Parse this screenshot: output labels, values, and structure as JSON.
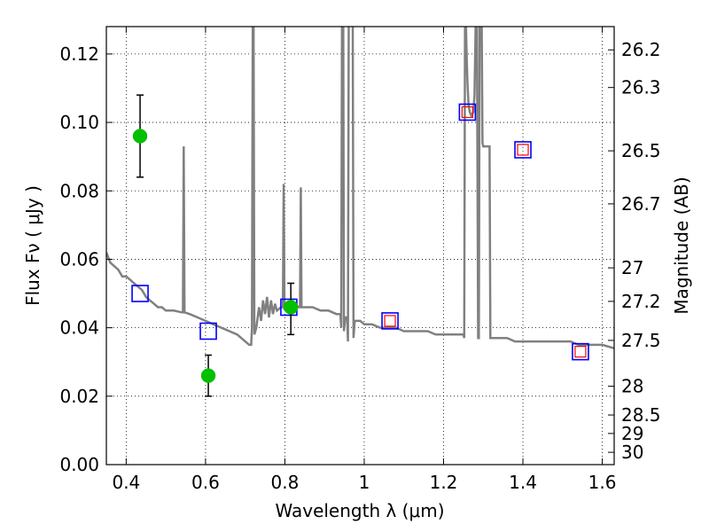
{
  "chart_data": {
    "type": "scatter",
    "xlabel": "Wavelength  λ (μm)",
    "ylabel": "Flux  Fν  ( μJy )",
    "ylabel_right": "Magnitude (AB)",
    "xlim": [
      0.35,
      1.63
    ],
    "ylim": [
      0.0,
      0.128
    ],
    "grid": true,
    "x_ticks": [
      {
        "value": 0.4,
        "label": "0.4"
      },
      {
        "value": 0.6,
        "label": "0.6"
      },
      {
        "value": 0.8,
        "label": "0.8"
      },
      {
        "value": 1.0,
        "label": "1"
      },
      {
        "value": 1.2,
        "label": "1.2"
      },
      {
        "value": 1.4,
        "label": "1.4"
      },
      {
        "value": 1.6,
        "label": "1.6"
      }
    ],
    "y_ticks": [
      {
        "value": 0.0,
        "label": "0.00"
      },
      {
        "value": 0.02,
        "label": "0.02"
      },
      {
        "value": 0.04,
        "label": "0.04"
      },
      {
        "value": 0.06,
        "label": "0.06"
      },
      {
        "value": 0.08,
        "label": "0.08"
      },
      {
        "value": 0.1,
        "label": "0.10"
      },
      {
        "value": 0.12,
        "label": "0.12"
      }
    ],
    "right_ticks": [
      {
        "flux": 0.1212,
        "label": "26.2"
      },
      {
        "flux": 0.1102,
        "label": "26.3"
      },
      {
        "flux": 0.0917,
        "label": "26.5"
      },
      {
        "flux": 0.0762,
        "label": "26.7"
      },
      {
        "flux": 0.0575,
        "label": "27"
      },
      {
        "flux": 0.0477,
        "label": "27.2"
      },
      {
        "flux": 0.0363,
        "label": "27.5"
      },
      {
        "flux": 0.0229,
        "label": "28"
      },
      {
        "flux": 0.0145,
        "label": "28.5"
      },
      {
        "flux": 0.0091,
        "label": "29"
      },
      {
        "flux": 0.0036,
        "label": "30"
      }
    ],
    "series": [
      {
        "kind": "line",
        "color": "#808080",
        "points": [
          [
            0.35,
            0.062
          ],
          [
            0.36,
            0.059
          ],
          [
            0.37,
            0.058
          ],
          [
            0.38,
            0.057
          ],
          [
            0.39,
            0.055
          ],
          [
            0.4,
            0.055
          ],
          [
            0.41,
            0.054
          ],
          [
            0.42,
            0.053
          ],
          [
            0.43,
            0.052
          ],
          [
            0.44,
            0.051
          ],
          [
            0.45,
            0.049
          ],
          [
            0.46,
            0.048
          ],
          [
            0.47,
            0.047
          ],
          [
            0.48,
            0.046
          ],
          [
            0.49,
            0.046
          ],
          [
            0.5,
            0.045
          ],
          [
            0.52,
            0.045
          ],
          [
            0.54,
            0.0445
          ],
          [
            0.543,
            0.0445
          ],
          [
            0.545,
            0.093
          ],
          [
            0.547,
            0.0445
          ],
          [
            0.56,
            0.044
          ],
          [
            0.58,
            0.043
          ],
          [
            0.6,
            0.042
          ],
          [
            0.62,
            0.041
          ],
          [
            0.64,
            0.04
          ],
          [
            0.66,
            0.039
          ],
          [
            0.68,
            0.038
          ],
          [
            0.7,
            0.036
          ],
          [
            0.71,
            0.035
          ],
          [
            0.715,
            0.035
          ],
          [
            0.717,
            0.04
          ],
          [
            0.719,
            0.13
          ],
          [
            0.721,
            0.13
          ],
          [
            0.723,
            0.038
          ],
          [
            0.728,
            0.04
          ],
          [
            0.735,
            0.046
          ],
          [
            0.74,
            0.042
          ],
          [
            0.745,
            0.048
          ],
          [
            0.75,
            0.044
          ],
          [
            0.755,
            0.049
          ],
          [
            0.76,
            0.043
          ],
          [
            0.765,
            0.048
          ],
          [
            0.77,
            0.044
          ],
          [
            0.775,
            0.047
          ],
          [
            0.78,
            0.045
          ],
          [
            0.79,
            0.046
          ],
          [
            0.795,
            0.046
          ],
          [
            0.797,
            0.082
          ],
          [
            0.799,
            0.046
          ],
          [
            0.805,
            0.047
          ],
          [
            0.815,
            0.047
          ],
          [
            0.825,
            0.047
          ],
          [
            0.835,
            0.046
          ],
          [
            0.838,
            0.046
          ],
          [
            0.84,
            0.081
          ],
          [
            0.842,
            0.046
          ],
          [
            0.85,
            0.046
          ],
          [
            0.87,
            0.046
          ],
          [
            0.89,
            0.045
          ],
          [
            0.91,
            0.045
          ],
          [
            0.93,
            0.044
          ],
          [
            0.94,
            0.044
          ],
          [
            0.942,
            0.04
          ],
          [
            0.944,
            0.13
          ],
          [
            0.947,
            0.13
          ],
          [
            0.949,
            0.039
          ],
          [
            0.952,
            0.043
          ],
          [
            0.957,
            0.043
          ],
          [
            0.959,
            0.036
          ],
          [
            0.961,
            0.13
          ],
          [
            0.967,
            0.13
          ],
          [
            0.969,
            0.13
          ],
          [
            0.971,
            0.13
          ],
          [
            0.973,
            0.037
          ],
          [
            0.976,
            0.042
          ],
          [
            0.99,
            0.042
          ],
          [
            1.0,
            0.041
          ],
          [
            1.02,
            0.041
          ],
          [
            1.04,
            0.04
          ],
          [
            1.06,
            0.04
          ],
          [
            1.08,
            0.04
          ],
          [
            1.1,
            0.039
          ],
          [
            1.12,
            0.039
          ],
          [
            1.14,
            0.039
          ],
          [
            1.16,
            0.039
          ],
          [
            1.18,
            0.038
          ],
          [
            1.2,
            0.038
          ],
          [
            1.22,
            0.038
          ],
          [
            1.24,
            0.038
          ],
          [
            1.25,
            0.038
          ],
          [
            1.252,
            0.037
          ],
          [
            1.254,
            0.13
          ],
          [
            1.256,
            0.13
          ],
          [
            1.258,
            0.12
          ],
          [
            1.26,
            0.112
          ],
          [
            1.263,
            0.105
          ],
          [
            1.266,
            0.103
          ],
          [
            1.27,
            0.102
          ],
          [
            1.275,
            0.103
          ],
          [
            1.278,
            0.108
          ],
          [
            1.281,
            0.13
          ],
          [
            1.284,
            0.13
          ],
          [
            1.287,
            0.037
          ],
          [
            1.289,
            0.037
          ],
          [
            1.291,
            0.13
          ],
          [
            1.296,
            0.13
          ],
          [
            1.298,
            0.094
          ],
          [
            1.3,
            0.093
          ],
          [
            1.31,
            0.093
          ],
          [
            1.316,
            0.093
          ],
          [
            1.318,
            0.037
          ],
          [
            1.32,
            0.037
          ],
          [
            1.34,
            0.037
          ],
          [
            1.36,
            0.037
          ],
          [
            1.38,
            0.036
          ],
          [
            1.4,
            0.036
          ],
          [
            1.42,
            0.036
          ],
          [
            1.44,
            0.036
          ],
          [
            1.46,
            0.036
          ],
          [
            1.48,
            0.036
          ],
          [
            1.5,
            0.036
          ],
          [
            1.52,
            0.036
          ],
          [
            1.54,
            0.035
          ],
          [
            1.56,
            0.035
          ],
          [
            1.58,
            0.035
          ],
          [
            1.6,
            0.035
          ],
          [
            1.63,
            0.034
          ]
        ]
      },
      {
        "kind": "open-square",
        "color": "#0000ff",
        "points": [
          [
            0.435,
            0.05
          ],
          [
            0.607,
            0.039
          ],
          [
            0.81,
            0.046
          ],
          [
            1.065,
            0.042
          ],
          [
            1.26,
            0.103
          ],
          [
            1.4,
            0.092
          ],
          [
            1.545,
            0.033
          ]
        ]
      },
      {
        "kind": "open-square-small",
        "color": "#ff0000",
        "points": [
          [
            1.065,
            0.042
          ],
          [
            1.26,
            0.103
          ],
          [
            1.4,
            0.092
          ],
          [
            1.545,
            0.033
          ]
        ]
      },
      {
        "kind": "errorbar-point",
        "color": "#00c000",
        "points": [
          {
            "x": 0.435,
            "y": 0.096,
            "lo": 0.084,
            "hi": 0.108
          },
          {
            "x": 0.607,
            "y": 0.026,
            "lo": 0.02,
            "hi": 0.032
          },
          {
            "x": 0.815,
            "y": 0.046,
            "lo": 0.038,
            "hi": 0.053
          }
        ]
      }
    ]
  }
}
